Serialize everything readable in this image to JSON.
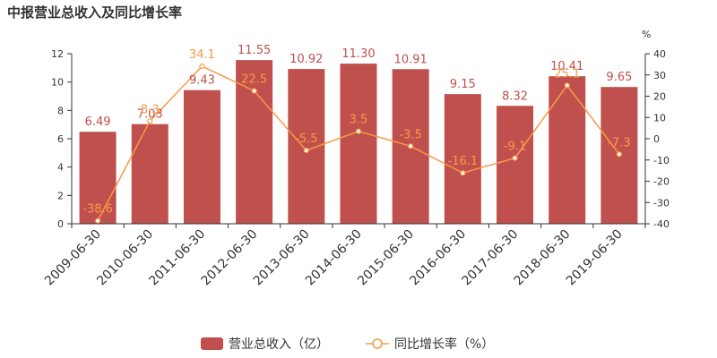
{
  "title": "中报营业总收入及同比增长率",
  "colors": {
    "bar": "#C0504D",
    "line": "#F79A46",
    "axis": "#333333",
    "text": "#333333"
  },
  "chart_data": {
    "type": "bar",
    "title": "中报营业总收入及同比增长率",
    "categories": [
      "2009-06-30",
      "2010-06-30",
      "2011-06-30",
      "2012-06-30",
      "2013-06-30",
      "2014-06-30",
      "2015-06-30",
      "2016-06-30",
      "2017-06-30",
      "2018-06-30",
      "2019-06-30"
    ],
    "series": [
      {
        "name": "营业总收入（亿）",
        "type": "bar",
        "axis": "left",
        "values": [
          6.49,
          7.03,
          9.43,
          11.55,
          10.92,
          11.3,
          10.91,
          9.15,
          8.32,
          10.41,
          9.65
        ],
        "labels": [
          "6.49",
          "7.03",
          "9.43",
          "11.55",
          "10.92",
          "11.30",
          "10.91",
          "9.15",
          "8.32",
          "10.41",
          "9.65"
        ]
      },
      {
        "name": "同比增长率（%）",
        "type": "line",
        "axis": "right",
        "values": [
          -38.6,
          8.3,
          34.1,
          22.5,
          -5.5,
          3.5,
          -3.5,
          -16.1,
          -9.1,
          25.1,
          -7.3
        ],
        "labels": [
          "-38.6",
          "8.3",
          "34.1",
          "22.5",
          "-5.5",
          "3.5",
          "-3.5",
          "-16.1",
          "-9.1",
          "25.1",
          "-7.3"
        ]
      }
    ],
    "y_left": {
      "ylim": [
        0,
        12
      ],
      "ticks": [
        "0",
        "2",
        "4",
        "6",
        "8",
        "10",
        "12"
      ]
    },
    "y_right": {
      "unit": "%",
      "ylim": [
        -40,
        40
      ],
      "ticks": [
        "-40",
        "-30",
        "-20",
        "-10",
        "0",
        "10",
        "20",
        "30",
        "40"
      ]
    },
    "legend": {
      "position": "bottom",
      "items": [
        "营业总收入（亿）",
        "同比增长率（%）"
      ]
    },
    "grid": false
  }
}
